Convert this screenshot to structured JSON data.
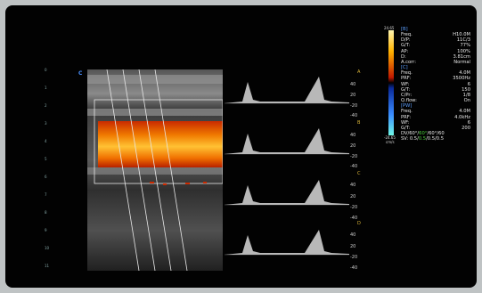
{
  "ui": {
    "mode_letter": "C",
    "colorbar": {
      "top": "24.65",
      "bottom": "-24.65",
      "unit": "cm/s"
    },
    "depth_ticks": [
      "0",
      "1",
      "2",
      "3",
      "4",
      "5",
      "6",
      "7",
      "8",
      "9",
      "10",
      "11"
    ],
    "spectral": {
      "scale_labels": [
        "40",
        "20",
        "0",
        "-20",
        "-40"
      ],
      "gate_letters": [
        "A",
        "B",
        "C",
        "D"
      ]
    }
  },
  "params": {
    "b_header": "[B]",
    "rows_b": [
      {
        "label": "Freq.",
        "value": "H10.0M"
      },
      {
        "label": "D/P:",
        "value": "11C/3"
      },
      {
        "label": "G/T:",
        "value": "77%"
      },
      {
        "label": "AP:",
        "value": "100%"
      },
      {
        "label": "D:",
        "value": "3.81cm"
      },
      {
        "label": "A.corr:",
        "value": "Normal"
      }
    ],
    "c_header": "[C]",
    "rows_c": [
      {
        "label": "Freq.",
        "value": "4.0M"
      },
      {
        "label": "PRF:",
        "value": "3500Hz"
      },
      {
        "label": "WF:",
        "value": "6"
      },
      {
        "label": "G/T:",
        "value": "150"
      },
      {
        "label": "C/Pr:",
        "value": "1/8"
      },
      {
        "label": "Q.flow:",
        "value": "On"
      }
    ],
    "pw_header": "[PW]",
    "rows_pw": [
      {
        "label": "Freq.",
        "value": "4.0M"
      },
      {
        "label": "PRF:",
        "value": "4.0kHz"
      },
      {
        "label": "WF:",
        "value": "6"
      },
      {
        "label": "G/T:",
        "value": "200"
      }
    ],
    "dv_label": "DV/60°/",
    "dv_values": [
      "60°",
      "/60°/60"
    ],
    "sv_label": "SV: 0.5/",
    "sv_values": [
      "0.5",
      "/0.5/0.5"
    ]
  }
}
